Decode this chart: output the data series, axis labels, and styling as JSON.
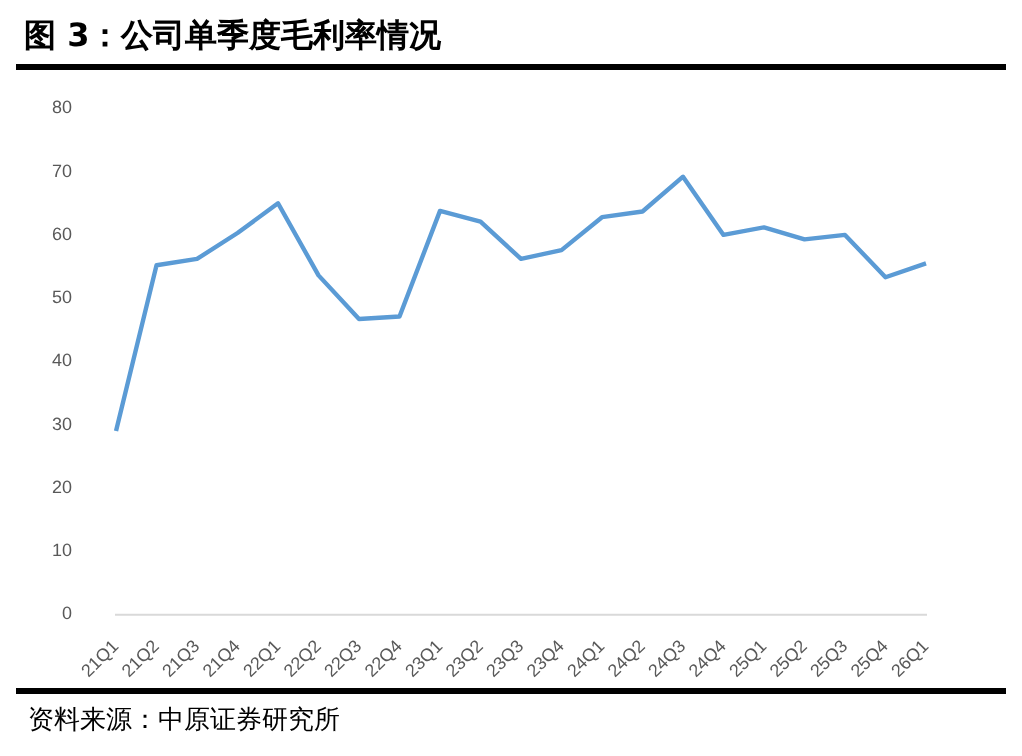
{
  "chart_data": {
    "type": "line",
    "title": "图 3：公司单季度毛利率情况",
    "categories": [
      "21Q1",
      "21Q2",
      "21Q3",
      "21Q4",
      "22Q1",
      "22Q2",
      "22Q3",
      "22Q4",
      "23Q1",
      "23Q2",
      "23Q3",
      "23Q4",
      "24Q1",
      "24Q2",
      "24Q3",
      "24Q4",
      "25Q1",
      "25Q2",
      "25Q3",
      "25Q4",
      "26Q1"
    ],
    "series": [
      {
        "color": "#5b9bd5",
        "values": [
          29,
          55.2,
          56.2,
          60.3,
          65,
          53.6,
          46.7,
          47.1,
          63.8,
          62.1,
          56.2,
          57.6,
          62.8,
          63.7,
          69.2,
          60,
          61.2,
          59.3,
          60,
          53.3,
          55.5
        ]
      }
    ],
    "ylim": [
      0,
      80
    ],
    "yticks": [
      0,
      10,
      20,
      30,
      40,
      50,
      60,
      70,
      80
    ],
    "grid": false,
    "legend": false,
    "marker": "none",
    "line_style": "solid",
    "annotations": [
      "资料来源：中原证券研究所"
    ]
  }
}
